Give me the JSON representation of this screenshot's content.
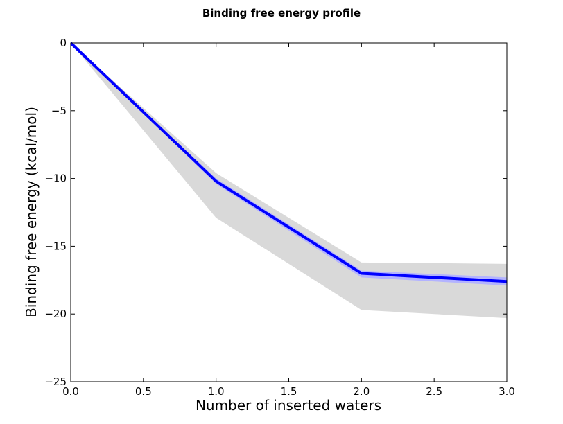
{
  "chart_data": {
    "type": "line",
    "title": "Binding free energy profile",
    "xlabel": "Number of inserted waters",
    "ylabel": "Binding free energy (kcal/mol)",
    "xlim": [
      0.0,
      3.0
    ],
    "ylim": [
      -25,
      0
    ],
    "xticks": [
      "0.0",
      "0.5",
      "1.0",
      "1.5",
      "2.0",
      "2.5",
      "3.0"
    ],
    "yticks": [
      "0",
      "−5",
      "−10",
      "−15",
      "−20",
      "−25"
    ],
    "grid": false,
    "x": [
      0,
      1,
      2,
      3
    ],
    "series": [
      {
        "values": [
          0.0,
          -10.2,
          -17.0,
          -17.6
        ],
        "color": "#0000ff"
      }
    ],
    "bands": [
      {
        "lower": [
          0.0,
          -12.9,
          -19.7,
          -20.3
        ],
        "upper": [
          0.0,
          -9.6,
          -16.2,
          -16.3
        ],
        "color": "#d9d9d9"
      },
      {
        "lower": [
          0.0,
          -10.4,
          -17.3,
          -17.9
        ],
        "upper": [
          0.0,
          -10.0,
          -16.8,
          -17.3
        ],
        "color": "#b3b3ff"
      }
    ]
  }
}
